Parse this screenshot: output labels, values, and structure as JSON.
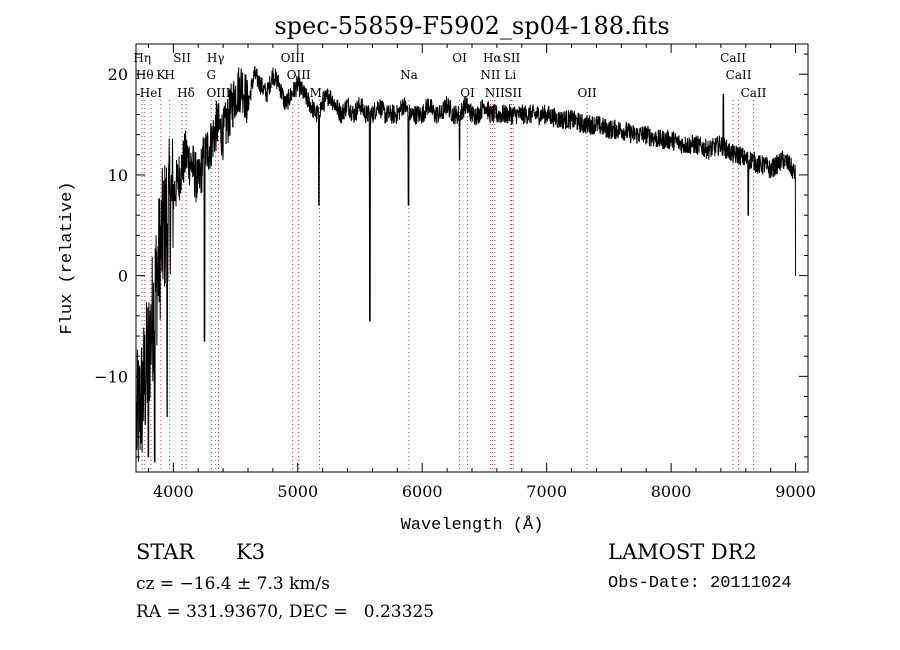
{
  "chart_data": {
    "type": "line",
    "title": "spec-55859-F5902_sp04-188.fits",
    "xlabel": "Wavelength (Å)",
    "ylabel": "Flux (relative)",
    "xlim": [
      3700,
      9100
    ],
    "ylim": [
      -19.5,
      23
    ],
    "x_ticks": [
      4000,
      5000,
      6000,
      7000,
      8000,
      9000
    ],
    "x_tick_labels": [
      "4000",
      "5000",
      "6000",
      "7000",
      "8000",
      "9000"
    ],
    "y_ticks": [
      -10,
      0,
      10,
      20
    ],
    "y_tick_labels": [
      "−10",
      "0",
      "10",
      "20"
    ],
    "grid": false,
    "line_color": "#000000",
    "marker_color": "#c83c3c",
    "series": [
      {
        "x": [
          3700,
          3750,
          3800,
          3850,
          3900,
          3950,
          4000,
          4050,
          4100,
          4150,
          4200,
          4250,
          4300,
          4350,
          4400,
          4450,
          4500,
          4550,
          4600,
          4650,
          4700,
          4750,
          4800,
          4850,
          4900,
          4950,
          5000,
          5050,
          5100,
          5150,
          5200,
          5250,
          5300,
          5350,
          5400,
          5450,
          5500,
          5550,
          5600,
          5650,
          5700,
          5750,
          5800,
          5850,
          5900,
          5950,
          6000,
          6050,
          6100,
          6150,
          6200,
          6250,
          6300,
          6350,
          6400,
          6450,
          6500,
          6550,
          6600,
          6650,
          6700,
          6750,
          6800,
          6850,
          6900,
          6950,
          7000,
          7100,
          7200,
          7300,
          7400,
          7500,
          7600,
          7700,
          7800,
          7900,
          8000,
          8100,
          8200,
          8300,
          8400,
          8450,
          8500,
          8550,
          8600,
          8650,
          8700,
          8750,
          8800,
          8850,
          8900,
          8950,
          9000
        ],
        "y": [
          -15,
          -12,
          -8,
          -2,
          3,
          6,
          8,
          10,
          12,
          11,
          9,
          12,
          13,
          15,
          14,
          16,
          18,
          19,
          17,
          20,
          19,
          18,
          20,
          19,
          17,
          18,
          19,
          18,
          17,
          16,
          17,
          18,
          17,
          16,
          17,
          16,
          17,
          16,
          16,
          17,
          16,
          16,
          16,
          17,
          16,
          16,
          16,
          17,
          16,
          16,
          17,
          16,
          16,
          17,
          16,
          16,
          17,
          16,
          16,
          16,
          16,
          16,
          16,
          16,
          16,
          16,
          16,
          15.5,
          15.5,
          15,
          15,
          14.5,
          14.5,
          14,
          14,
          13.5,
          13.5,
          13,
          13,
          12.5,
          13,
          12.5,
          12,
          12,
          11.5,
          11.5,
          11,
          11,
          10.5,
          11,
          11.5,
          11,
          10
        ]
      }
    ],
    "absorption_features": [
      {
        "x": 5580,
        "y": -4.5
      },
      {
        "x": 5890,
        "y": 7
      },
      {
        "x": 5170,
        "y": 7
      },
      {
        "x": 4250,
        "y": -6.5
      },
      {
        "x": 3800,
        "y": -18
      },
      {
        "x": 3850,
        "y": -18.5
      },
      {
        "x": 3950,
        "y": -14
      },
      {
        "x": 6300,
        "y": 11.5
      },
      {
        "x": 8620,
        "y": 6
      }
    ],
    "emission_features": [
      {
        "x": 8420,
        "y": 18
      }
    ],
    "reference_lines": [
      {
        "x": 3750,
        "label": "Hη",
        "row": 0
      },
      {
        "x": 3770,
        "label": "Hθ",
        "row": 1
      },
      {
        "x": 3820,
        "label": "HeI",
        "row": 2
      },
      {
        "x": 3900,
        "label": "K",
        "row": 1
      },
      {
        "x": 3970,
        "label": "H",
        "row": 1
      },
      {
        "x": 4070,
        "label": "SII",
        "row": 0
      },
      {
        "x": 4102,
        "label": "Hδ",
        "row": 2
      },
      {
        "x": 4305,
        "label": "G",
        "row": 1
      },
      {
        "x": 4340,
        "label": "Hγ",
        "row": 0
      },
      {
        "x": 4363,
        "label": "OIII",
        "row": 2
      },
      {
        "x": 4959,
        "label": "OIII",
        "row": 0
      },
      {
        "x": 5007,
        "label": "OIII",
        "row": 1
      },
      {
        "x": 5175,
        "label": "Mg",
        "row": 2
      },
      {
        "x": 5893,
        "label": "Na",
        "row": 1
      },
      {
        "x": 6300,
        "label": "OI",
        "row": 0
      },
      {
        "x": 6364,
        "label": "OI",
        "row": 2
      },
      {
        "x": 6548,
        "label": "NII",
        "row": 1
      },
      {
        "x": 6563,
        "label": "Hα",
        "row": 0
      },
      {
        "x": 6583,
        "label": "NII",
        "row": 2
      },
      {
        "x": 6708,
        "label": "Li",
        "row": 1
      },
      {
        "x": 6717,
        "label": "SII",
        "row": 0
      },
      {
        "x": 6731,
        "label": "SII",
        "row": 2
      },
      {
        "x": 7325,
        "label": "OII",
        "row": 2
      },
      {
        "x": 8498,
        "label": "CaII",
        "row": 0
      },
      {
        "x": 8542,
        "label": "CaII",
        "row": 1
      },
      {
        "x": 8662,
        "label": "CaII",
        "row": 2
      }
    ]
  },
  "info": {
    "object_type": "STAR",
    "subclass": "K3",
    "redshift": "cz = −16.4 ± 7.3 km/s",
    "coords": "RA = 331.93670, DEC =   0.23325",
    "survey": "LAMOST DR2",
    "obs_date": "Obs-Date: 20111024"
  }
}
